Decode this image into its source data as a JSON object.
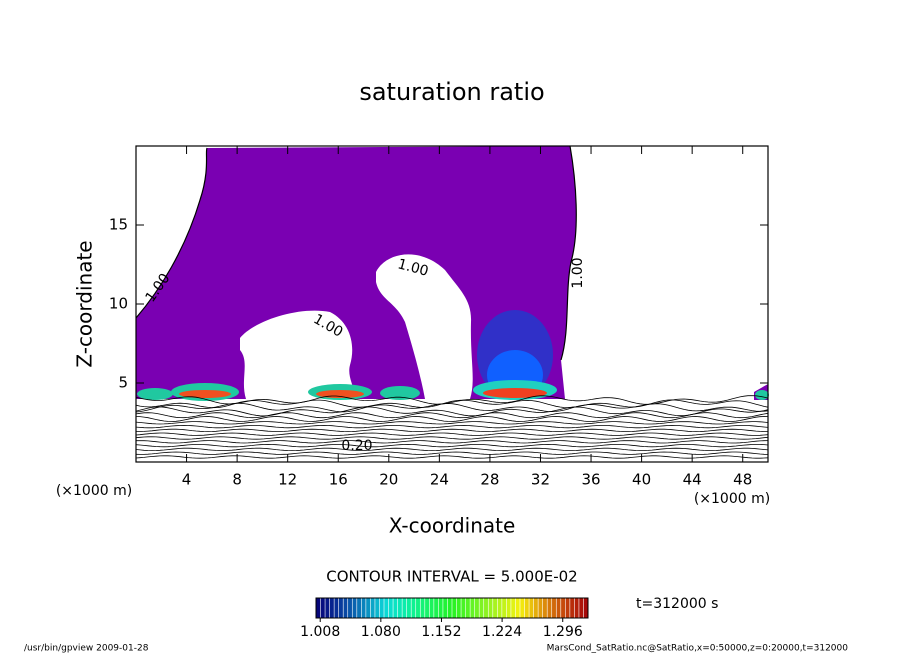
{
  "chart_data": {
    "type": "contour",
    "title": "saturation ratio",
    "xlabel": "X-coordinate",
    "ylabel": "Z-coordinate",
    "xunit": "(×1000 m)",
    "yunit": "(×1000 m)",
    "xlim": [
      0,
      50
    ],
    "ylim": [
      0,
      20
    ],
    "xticks": [
      4,
      8,
      12,
      16,
      20,
      24,
      28,
      32,
      36,
      40,
      44,
      48
    ],
    "yticks": [
      5,
      10,
      15
    ],
    "contour_labels": [
      "1.00",
      "1.00",
      "1.00",
      "1.00",
      "0.20"
    ],
    "contour_interval": "CONTOUR INTERVAL = 5.000E-02",
    "colorbar": {
      "clim": [
        1.003,
        1.326
      ],
      "ticks": [
        1.008,
        {
          "value": 1.08,
          "label": "1.080"
        },
        1.152,
        1.224,
        1.296
      ]
    },
    "time_label": "t=312000 s",
    "footer": {
      "left": "/usr/bin/gpview   2009-01-28",
      "right": "MarsCond_SatRatio.nc@SatRatio,x=0:50000,z=0:20000,t=312000"
    }
  }
}
